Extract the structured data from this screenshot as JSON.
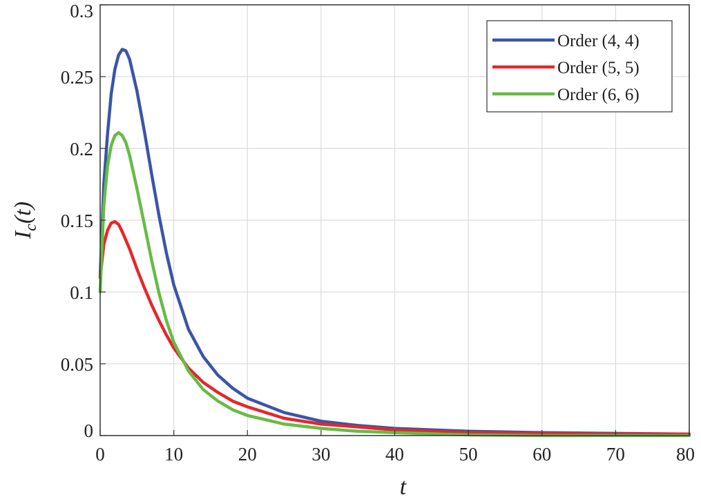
{
  "chart_data": {
    "type": "line",
    "title": "",
    "xlabel": "t",
    "ylabel": "I_c(t)",
    "xlim": [
      0,
      80
    ],
    "ylim": [
      0,
      0.3
    ],
    "x_ticks": [
      0,
      10,
      20,
      30,
      40,
      50,
      60,
      70,
      80
    ],
    "x_tick_labels": [
      "0",
      "10",
      "20",
      "30",
      "40",
      "50",
      "60",
      "70",
      "80"
    ],
    "y_ticks": [
      0,
      0.05,
      0.1,
      0.15,
      0.2,
      0.25,
      0.3
    ],
    "y_tick_labels": [
      "0",
      "0.05",
      "0.1",
      "0.15",
      "0.2",
      "0.25",
      "0.3"
    ],
    "grid": true,
    "legend_position": "top-right",
    "series": [
      {
        "name": "Order (4, 4)",
        "color": "#3a55a8",
        "x": [
          0,
          0.5,
          1,
          1.5,
          2,
          2.5,
          3,
          3.5,
          4,
          5,
          6,
          7,
          8,
          9,
          10,
          12,
          14,
          16,
          18,
          20,
          25,
          30,
          35,
          40,
          50,
          60,
          70,
          80
        ],
        "y": [
          0.11,
          0.175,
          0.21,
          0.238,
          0.255,
          0.265,
          0.269,
          0.268,
          0.262,
          0.24,
          0.212,
          0.182,
          0.153,
          0.127,
          0.105,
          0.074,
          0.055,
          0.042,
          0.033,
          0.026,
          0.016,
          0.01,
          0.007,
          0.005,
          0.003,
          0.002,
          0.0015,
          0.001
        ]
      },
      {
        "name": "Order (5, 5)",
        "color": "#e3282c",
        "x": [
          0,
          0.5,
          1,
          1.5,
          2,
          2.5,
          3,
          4,
          5,
          6,
          7,
          8,
          9,
          10,
          12,
          14,
          16,
          18,
          20,
          25,
          30,
          35,
          40,
          50,
          60,
          70,
          80
        ],
        "y": [
          0.11,
          0.133,
          0.143,
          0.148,
          0.149,
          0.147,
          0.142,
          0.13,
          0.116,
          0.103,
          0.091,
          0.08,
          0.07,
          0.061,
          0.047,
          0.037,
          0.03,
          0.024,
          0.02,
          0.012,
          0.008,
          0.006,
          0.004,
          0.002,
          0.0015,
          0.001,
          0.001
        ]
      },
      {
        "name": "Order (6, 6)",
        "color": "#66bc45",
        "x": [
          0,
          0.5,
          1,
          1.5,
          2,
          2.5,
          3,
          3.5,
          4,
          5,
          6,
          7,
          8,
          9,
          10,
          12,
          14,
          16,
          18,
          20,
          25,
          30,
          35,
          40,
          50,
          60,
          70,
          80
        ],
        "y": [
          0.1,
          0.16,
          0.188,
          0.202,
          0.209,
          0.211,
          0.209,
          0.204,
          0.195,
          0.172,
          0.147,
          0.122,
          0.099,
          0.08,
          0.065,
          0.045,
          0.032,
          0.024,
          0.018,
          0.014,
          0.008,
          0.005,
          0.003,
          0.002,
          0.0005,
          0,
          0,
          0
        ]
      }
    ]
  }
}
